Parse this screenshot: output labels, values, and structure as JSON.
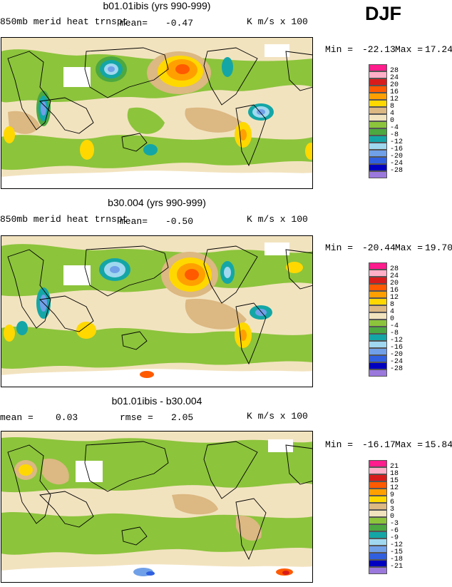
{
  "season": "DJF",
  "colors": {
    "c28": "#ff1c8c",
    "c24": "#ffb0c8",
    "c20": "#d81c1c",
    "c16": "#ff5a00",
    "c12": "#ffa000",
    "c8": "#ffd800",
    "c4": "#dcb882",
    "c0": "#f2e3bf",
    "cm4": "#8cc43c",
    "cm8": "#4ca840",
    "cm12": "#14a6a6",
    "cm16": "#a0d8f0",
    "cm20": "#70a0e8",
    "cm24": "#3060e0",
    "cm28": "#0000c0",
    "cm32": "#9a78dc"
  },
  "panels": [
    {
      "title": "b01.01ibis (yrs 990-999)",
      "variable": "850mb merid heat trnspt",
      "stat1_label": "mean=",
      "stat1_value": "-0.47",
      "units": "K m/s x 100",
      "min_label": "Min =",
      "min_value": "-22.13",
      "max_label": "Max =",
      "max_value": "17.24",
      "legend": [
        "28",
        "24",
        "20",
        "16",
        "12",
        "8",
        "4",
        "0",
        "-4",
        "-8",
        "-12",
        "-16",
        "-20",
        "-24",
        "-28"
      ]
    },
    {
      "title": "b30.004 (yrs 990-999)",
      "variable": "850mb merid heat trnspt",
      "stat1_label": "mean=",
      "stat1_value": "-0.50",
      "units": "K m/s x 100",
      "min_label": "Min =",
      "min_value": "-20.44",
      "max_label": "Max =",
      "max_value": "19.70",
      "legend": [
        "28",
        "24",
        "20",
        "16",
        "12",
        "8",
        "4",
        "0",
        "-4",
        "-8",
        "-12",
        "-16",
        "-20",
        "-24",
        "-28"
      ]
    },
    {
      "title": "b01.01ibis - b30.004",
      "stat1_label": "mean =",
      "stat1_value": "0.03",
      "stat2_label": "rmse =",
      "stat2_value": "2.05",
      "units": "K m/s x 100",
      "min_label": "Min =",
      "min_value": "-16.17",
      "max_label": "Max =",
      "max_value": "15.84",
      "legend": [
        "21",
        "18",
        "15",
        "12",
        "9",
        "6",
        "3",
        "0",
        "-3",
        "-6",
        "-9",
        "-12",
        "-15",
        "-18",
        "-21"
      ]
    }
  ],
  "chart_data": [
    {
      "type": "heatmap",
      "title": "b01.01ibis (yrs 990-999)",
      "variable": "850mb merid heat trnspt",
      "units": "K m/s x 100",
      "mean": -0.47,
      "min": -22.13,
      "max": 17.24,
      "contour_levels": [
        -28,
        -24,
        -20,
        -16,
        -12,
        -8,
        -4,
        0,
        4,
        8,
        12,
        16,
        20,
        24,
        28
      ],
      "features": [
        {
          "lon": 150,
          "lat": 45,
          "value": 17
        },
        {
          "lon": 205,
          "lat": 50,
          "value": -13
        },
        {
          "lon": 290,
          "lat": 48,
          "value": -18
        },
        {
          "lon": 120,
          "lat": 25,
          "value": -19
        },
        {
          "lon": 75,
          "lat": -35,
          "value": 10
        },
        {
          "lon": 250,
          "lat": -35,
          "value": 12
        },
        {
          "lon": 60,
          "lat": 55,
          "value": -12
        },
        {
          "lon": 30,
          "lat": 10,
          "value": -8
        }
      ]
    },
    {
      "type": "heatmap",
      "title": "b30.004 (yrs 990-999)",
      "variable": "850mb merid heat trnspt",
      "units": "K m/s x 100",
      "mean": -0.5,
      "min": -20.44,
      "max": 19.7,
      "contour_levels": [
        -28,
        -24,
        -20,
        -16,
        -12,
        -8,
        -4,
        0,
        4,
        8,
        12,
        16,
        20,
        24,
        28
      ],
      "features": [
        {
          "lon": 150,
          "lat": 45,
          "value": 19
        },
        {
          "lon": 210,
          "lat": 52,
          "value": -15
        },
        {
          "lon": 290,
          "lat": 48,
          "value": -16
        },
        {
          "lon": 115,
          "lat": 40,
          "value": -16
        },
        {
          "lon": 60,
          "lat": -35,
          "value": 11
        },
        {
          "lon": 255,
          "lat": -30,
          "value": 13
        },
        {
          "lon": 30,
          "lat": -10,
          "value": -12
        },
        {
          "lon": 315,
          "lat": 45,
          "value": 10
        }
      ]
    },
    {
      "type": "heatmap",
      "title": "b01.01ibis - b30.004",
      "units": "K m/s x 100",
      "mean": 0.03,
      "rmse": 2.05,
      "min": -16.17,
      "max": 15.84,
      "contour_levels": [
        -21,
        -18,
        -15,
        -12,
        -9,
        -6,
        -3,
        0,
        3,
        6,
        9,
        12,
        15,
        18,
        21
      ],
      "features": [
        {
          "lon": 35,
          "lat": 55,
          "value": 8
        },
        {
          "lon": 200,
          "lat": -70,
          "value": -12
        },
        {
          "lon": 280,
          "lat": -70,
          "value": 15
        },
        {
          "lon": 150,
          "lat": 30,
          "value": -4
        }
      ]
    }
  ]
}
